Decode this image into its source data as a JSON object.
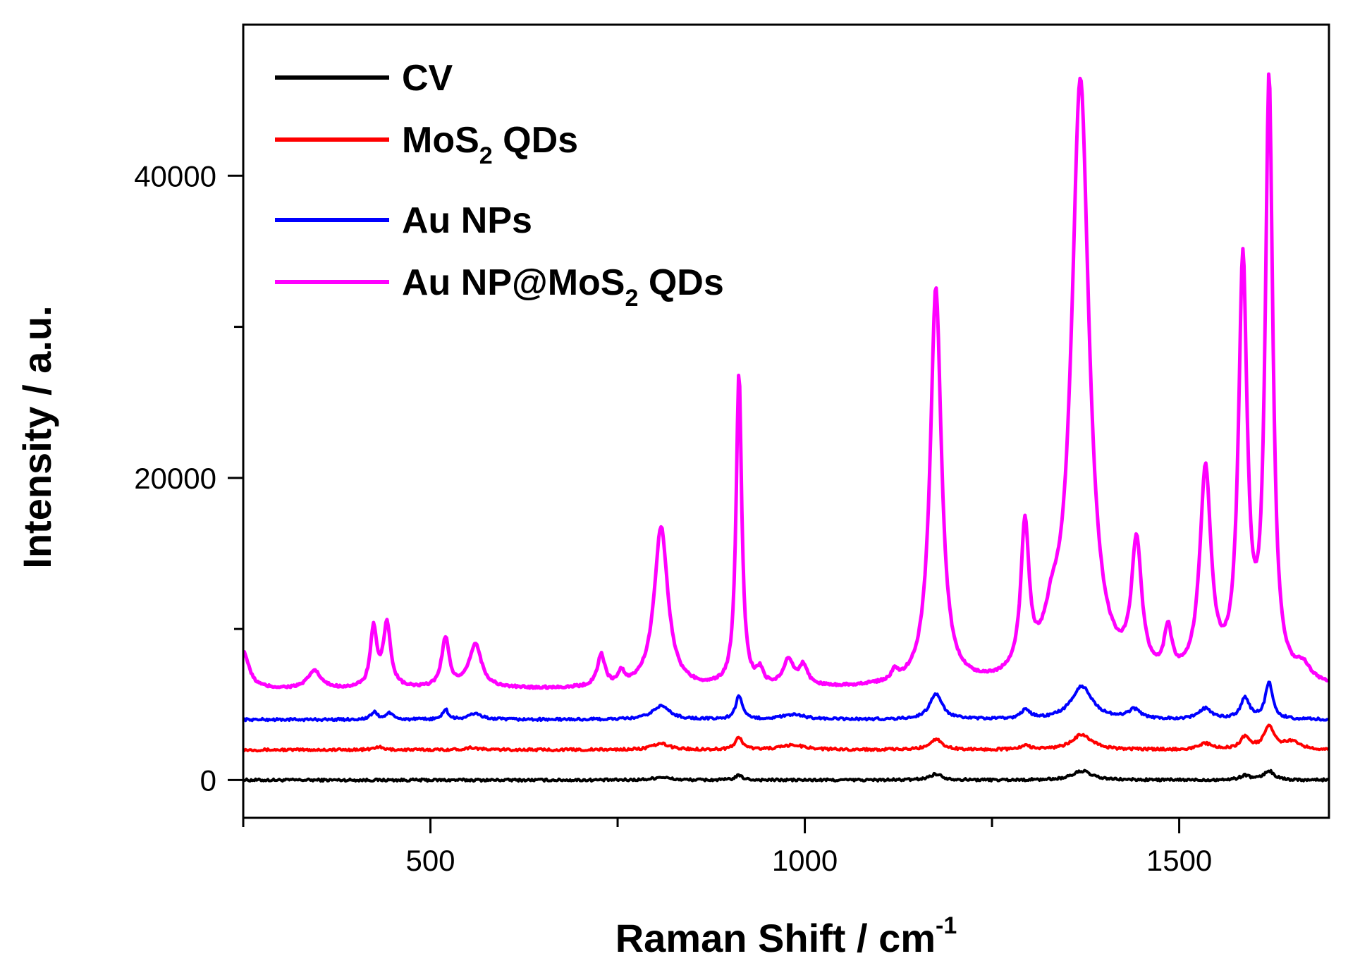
{
  "chart_data": {
    "type": "line",
    "title": "",
    "xlabel": "Raman Shift / cm",
    "xlabel_superscript": "-1",
    "ylabel": "Intensity / a.u.",
    "xlim": [
      250,
      1700
    ],
    "ylim": [
      -2500,
      50000
    ],
    "xticks": [
      500,
      1000,
      1500
    ],
    "xtick_labels": [
      "500",
      "1000",
      "1500"
    ],
    "yticks": [
      0,
      20000,
      40000
    ],
    "ytick_labels": [
      "0",
      "20000",
      "40000"
    ],
    "legend_position": "top-left",
    "series": [
      {
        "name": "CV",
        "legend": {
          "text": "CV",
          "sub": "",
          "tail": ""
        },
        "color": "#000000",
        "baseline": 0,
        "peaks": [
          [
            808,
            200,
            12
          ],
          [
            912,
            300,
            6
          ],
          [
            1175,
            400,
            10
          ],
          [
            1370,
            600,
            15
          ],
          [
            1588,
            300,
            8
          ],
          [
            1620,
            600,
            8
          ]
        ]
      },
      {
        "name": "MoS2 QDs",
        "legend": {
          "text": "MoS",
          "sub": "2",
          "tail": " QDs"
        },
        "color": "#ff0000",
        "baseline": 2000,
        "peaks": [
          [
            430,
            200,
            6
          ],
          [
            555,
            150,
            10
          ],
          [
            808,
            400,
            14
          ],
          [
            912,
            800,
            6
          ],
          [
            985,
            300,
            20
          ],
          [
            1175,
            700,
            10
          ],
          [
            1295,
            250,
            8
          ],
          [
            1370,
            1000,
            16
          ],
          [
            1535,
            400,
            10
          ],
          [
            1588,
            800,
            8
          ],
          [
            1620,
            1500,
            8
          ],
          [
            1650,
            500,
            14
          ]
        ]
      },
      {
        "name": "Au NPs",
        "legend": {
          "text": "Au NPs",
          "sub": "",
          "tail": ""
        },
        "color": "#0000ff",
        "baseline": 4000,
        "peaks": [
          [
            425,
            500,
            5
          ],
          [
            445,
            450,
            5
          ],
          [
            520,
            700,
            4
          ],
          [
            560,
            400,
            10
          ],
          [
            808,
            900,
            14
          ],
          [
            912,
            1600,
            5
          ],
          [
            985,
            300,
            20
          ],
          [
            1175,
            1700,
            10
          ],
          [
            1295,
            600,
            7
          ],
          [
            1370,
            2200,
            17
          ],
          [
            1440,
            600,
            10
          ],
          [
            1535,
            700,
            10
          ],
          [
            1588,
            1400,
            7
          ],
          [
            1620,
            2400,
            6
          ]
        ]
      },
      {
        "name": "Au NP@MoS2 QDs",
        "legend": {
          "text": "Au NP@MoS",
          "sub": "2",
          "tail": " QDs"
        },
        "color": "#ff00ff",
        "baseline": 6000,
        "peaks": [
          [
            250,
            2500,
            9
          ],
          [
            345,
            1200,
            10
          ],
          [
            424,
            3900,
            5
          ],
          [
            442,
            4200,
            6
          ],
          [
            520,
            3300,
            6
          ],
          [
            560,
            2900,
            10
          ],
          [
            728,
            2100,
            6
          ],
          [
            755,
            800,
            5
          ],
          [
            808,
            10700,
            11
          ],
          [
            912,
            20700,
            4.5
          ],
          [
            940,
            900,
            5
          ],
          [
            978,
            1700,
            8
          ],
          [
            998,
            1300,
            7
          ],
          [
            1120,
            600,
            5
          ],
          [
            1175,
            26300,
            9
          ],
          [
            1294,
            9700,
            6.5
          ],
          [
            1330,
            2300,
            12
          ],
          [
            1368,
            40000,
            14
          ],
          [
            1443,
            8600,
            8
          ],
          [
            1485,
            3000,
            6
          ],
          [
            1535,
            13800,
            9
          ],
          [
            1585,
            27300,
            7
          ],
          [
            1620,
            39500,
            6
          ],
          [
            1665,
            1000,
            12
          ]
        ]
      }
    ]
  }
}
